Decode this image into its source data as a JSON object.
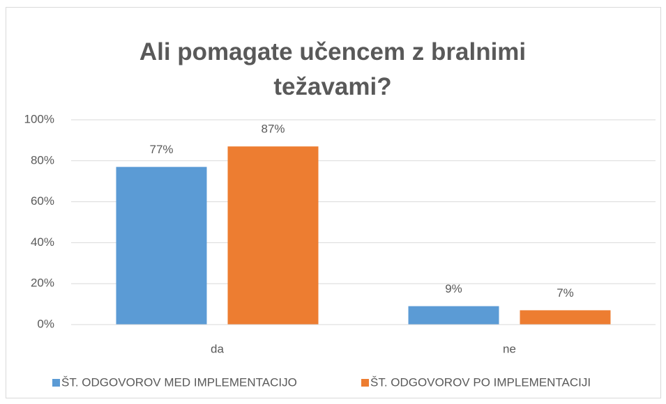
{
  "chart_data": {
    "type": "bar",
    "title": "Ali pomagate učencem z bralnimi težavami?",
    "categories": [
      "da",
      "ne"
    ],
    "series": [
      {
        "name": "ŠT. ODGOVOROV MED IMPLEMENTACIJO",
        "color": "#5b9bd5",
        "values": [
          77,
          9
        ],
        "value_labels": [
          "77%",
          "9%"
        ]
      },
      {
        "name": "ŠT. ODGOVOROV PO IMPLEMENTACIJI",
        "color": "#ed7d31",
        "values": [
          87,
          7
        ],
        "value_labels": [
          "87%",
          "7%"
        ]
      }
    ],
    "ylim": [
      0,
      100
    ],
    "yticks": [
      {
        "value": 0,
        "label": "0%"
      },
      {
        "value": 20,
        "label": "20%"
      },
      {
        "value": 40,
        "label": "40%"
      },
      {
        "value": 60,
        "label": "60%"
      },
      {
        "value": 80,
        "label": "80%"
      },
      {
        "value": 100,
        "label": "100%"
      }
    ],
    "grid": true,
    "legend": "bottom"
  }
}
